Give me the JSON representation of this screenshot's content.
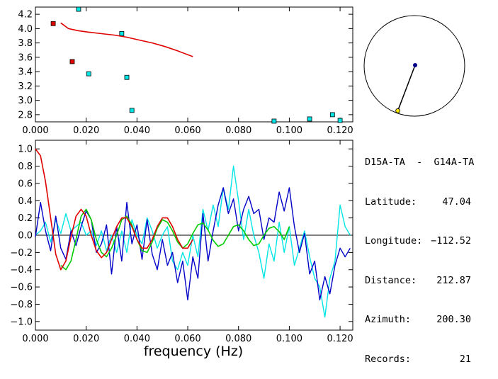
{
  "colors": {
    "axis": "#000000",
    "red": "#e00000",
    "blue": "#0000c8",
    "cyan": "#00e5e5",
    "green": "#00cc00",
    "yellow": "#ffe800",
    "station": "#00008b"
  },
  "info": {
    "pair": "D15A-TA  -  G14A-TA",
    "latitude_label": "Latitude:",
    "latitude": "47.04",
    "longitude_label": "Longitude:",
    "longitude": "−112.52",
    "distance_label": "Distance:",
    "distance": "212.87",
    "azimuth_label": "Azimuth:",
    "azimuth": "200.30",
    "records_label": "Records:",
    "records": "21"
  },
  "map": {
    "azimuth_deg": 200.3
  },
  "chart_data": [
    {
      "type": "scatter",
      "title": "",
      "xlabel": "",
      "ylabel": "",
      "xlim": [
        0.0,
        0.125
      ],
      "ylim": [
        2.7,
        4.3
      ],
      "x_ticks": [
        "0.000",
        "0.020",
        "0.040",
        "0.060",
        "0.080",
        "0.100",
        "0.120"
      ],
      "y_ticks": [
        "4.2",
        "4.0",
        "3.8",
        "3.6",
        "3.4",
        "3.2",
        "3.0",
        "2.8"
      ],
      "series": [
        {
          "name": "red-points",
          "color": "red",
          "points": [
            [
              0.007,
              4.07
            ],
            [
              0.0145,
              3.54
            ]
          ]
        },
        {
          "name": "cyan-points",
          "color": "cyan",
          "points": [
            [
              0.017,
              4.27
            ],
            [
              0.021,
              3.37
            ],
            [
              0.034,
              3.93
            ],
            [
              0.036,
              3.32
            ],
            [
              0.038,
              2.86
            ],
            [
              0.094,
              2.71
            ],
            [
              0.108,
              2.74
            ],
            [
              0.117,
              2.8
            ],
            [
              0.12,
              2.72
            ]
          ]
        },
        {
          "name": "red-curve",
          "color": "red",
          "kind": "line",
          "x": [
            0.01,
            0.013,
            0.017,
            0.021,
            0.026,
            0.031,
            0.036,
            0.041,
            0.046,
            0.051,
            0.056,
            0.062
          ],
          "y": [
            4.08,
            4.0,
            3.97,
            3.95,
            3.93,
            3.91,
            3.88,
            3.84,
            3.8,
            3.75,
            3.69,
            3.61
          ]
        }
      ]
    },
    {
      "type": "line",
      "title": "",
      "xlabel": "frequency (Hz)",
      "ylabel": "",
      "xlim": [
        0.0,
        0.125
      ],
      "ylim": [
        -1.1,
        1.1
      ],
      "x_ticks": [
        "0.000",
        "0.020",
        "0.040",
        "0.060",
        "0.080",
        "0.100",
        "0.120"
      ],
      "y_ticks": [
        "1.0",
        "0.8",
        "0.6",
        "0.4",
        "0.2",
        "0.0",
        "−0.2",
        "−0.4",
        "−0.6",
        "−0.8",
        "−1.0"
      ],
      "series": [
        {
          "name": "data-blue",
          "color": "blue",
          "x": [
            0.0,
            0.002,
            0.004,
            0.006,
            0.008,
            0.01,
            0.012,
            0.014,
            0.016,
            0.018,
            0.02,
            0.022,
            0.024,
            0.026,
            0.028,
            0.03,
            0.032,
            0.034,
            0.036,
            0.038,
            0.04,
            0.042,
            0.044,
            0.046,
            0.048,
            0.05,
            0.052,
            0.054,
            0.056,
            0.058,
            0.06,
            0.062,
            0.064,
            0.066,
            0.068,
            0.07,
            0.072,
            0.074,
            0.076,
            0.078,
            0.08,
            0.082,
            0.084,
            0.086,
            0.088,
            0.09,
            0.092,
            0.094,
            0.096,
            0.098,
            0.1,
            0.102,
            0.104,
            0.106,
            0.108,
            0.11,
            0.112,
            0.114,
            0.116,
            0.118,
            0.12,
            0.122,
            0.124
          ],
          "y": [
            -0.02,
            0.38,
            0.05,
            -0.18,
            0.22,
            -0.15,
            -0.28,
            0.05,
            -0.12,
            0.1,
            0.28,
            0.18,
            -0.2,
            -0.1,
            0.12,
            -0.45,
            0.1,
            -0.3,
            0.38,
            -0.1,
            0.12,
            -0.28,
            0.18,
            -0.22,
            -0.4,
            -0.05,
            -0.35,
            -0.2,
            -0.55,
            -0.3,
            -0.75,
            -0.25,
            -0.5,
            0.25,
            -0.3,
            0.05,
            0.35,
            0.55,
            0.25,
            0.42,
            0.05,
            0.3,
            0.45,
            0.25,
            0.3,
            -0.05,
            0.2,
            0.15,
            0.5,
            0.28,
            0.55,
            0.1,
            -0.2,
            0.02,
            -0.45,
            -0.3,
            -0.75,
            -0.48,
            -0.68,
            -0.35,
            -0.15,
            -0.25,
            -0.15
          ]
        },
        {
          "name": "data-cyan",
          "color": "cyan",
          "x": [
            0.0,
            0.002,
            0.004,
            0.006,
            0.008,
            0.01,
            0.012,
            0.014,
            0.016,
            0.018,
            0.02,
            0.022,
            0.024,
            0.026,
            0.028,
            0.03,
            0.032,
            0.034,
            0.036,
            0.038,
            0.04,
            0.042,
            0.044,
            0.046,
            0.048,
            0.05,
            0.052,
            0.054,
            0.056,
            0.058,
            0.06,
            0.062,
            0.064,
            0.066,
            0.068,
            0.07,
            0.072,
            0.074,
            0.076,
            0.078,
            0.08,
            0.082,
            0.084,
            0.086,
            0.088,
            0.09,
            0.092,
            0.094,
            0.096,
            0.098,
            0.1,
            0.102,
            0.104,
            0.106,
            0.108,
            0.11,
            0.112,
            0.114,
            0.116,
            0.118,
            0.12,
            0.122,
            0.124
          ],
          "y": [
            0.0,
            0.05,
            0.15,
            -0.08,
            0.18,
            0.02,
            0.25,
            0.05,
            0.1,
            0.15,
            0.0,
            0.05,
            -0.12,
            0.05,
            -0.18,
            0.0,
            -0.2,
            0.05,
            -0.2,
            0.18,
            0.0,
            -0.1,
            0.2,
            0.05,
            -0.15,
            0.0,
            0.1,
            -0.3,
            -0.4,
            -0.2,
            -0.35,
            0.0,
            -0.25,
            0.3,
            0.05,
            0.35,
            0.1,
            0.55,
            0.3,
            0.8,
            0.4,
            -0.05,
            0.3,
            0.0,
            -0.2,
            -0.5,
            -0.1,
            -0.3,
            0.15,
            -0.2,
            0.1,
            -0.35,
            -0.15,
            0.05,
            -0.25,
            -0.5,
            -0.6,
            -0.95,
            -0.5,
            -0.3,
            0.35,
            0.1,
            0.0
          ]
        },
        {
          "name": "model-red",
          "color": "red",
          "x": [
            0.0,
            0.002,
            0.004,
            0.006,
            0.008,
            0.01,
            0.012,
            0.014,
            0.016,
            0.018,
            0.02,
            0.022,
            0.024,
            0.026,
            0.028,
            0.03,
            0.032,
            0.034,
            0.036,
            0.038,
            0.04,
            0.042,
            0.044,
            0.046,
            0.048,
            0.05,
            0.052,
            0.054,
            0.056,
            0.058,
            0.06,
            0.062
          ],
          "y": [
            1.0,
            0.92,
            0.62,
            0.2,
            -0.22,
            -0.4,
            -0.3,
            -0.02,
            0.22,
            0.3,
            0.22,
            0.0,
            -0.18,
            -0.26,
            -0.2,
            -0.05,
            0.1,
            0.2,
            0.2,
            0.1,
            -0.05,
            -0.15,
            -0.15,
            -0.05,
            0.1,
            0.2,
            0.2,
            0.1,
            -0.05,
            -0.15,
            -0.15,
            -0.05
          ]
        },
        {
          "name": "model-green",
          "color": "green",
          "x": [
            0.01,
            0.012,
            0.014,
            0.016,
            0.018,
            0.02,
            0.022,
            0.024,
            0.026,
            0.028,
            0.03,
            0.032,
            0.034,
            0.036,
            0.038,
            0.04,
            0.042,
            0.044,
            0.046,
            0.048,
            0.05,
            0.052,
            0.054,
            0.056,
            0.058,
            0.06,
            0.062,
            0.064,
            0.066,
            0.068,
            0.07,
            0.072,
            0.074,
            0.076,
            0.078,
            0.08,
            0.082,
            0.084,
            0.086,
            0.088,
            0.09,
            0.092,
            0.094,
            0.096,
            0.098,
            0.1
          ],
          "y": [
            -0.35,
            -0.4,
            -0.3,
            -0.05,
            0.22,
            0.3,
            0.18,
            -0.05,
            -0.2,
            -0.25,
            -0.15,
            0.0,
            0.18,
            0.22,
            0.12,
            -0.05,
            -0.18,
            -0.2,
            -0.08,
            0.08,
            0.18,
            0.15,
            0.05,
            -0.08,
            -0.15,
            -0.1,
            0.02,
            0.12,
            0.14,
            0.06,
            -0.06,
            -0.13,
            -0.1,
            0.0,
            0.1,
            0.12,
            0.05,
            -0.05,
            -0.12,
            -0.1,
            0.0,
            0.08,
            0.1,
            0.04,
            -0.05,
            0.1
          ]
        }
      ]
    }
  ]
}
